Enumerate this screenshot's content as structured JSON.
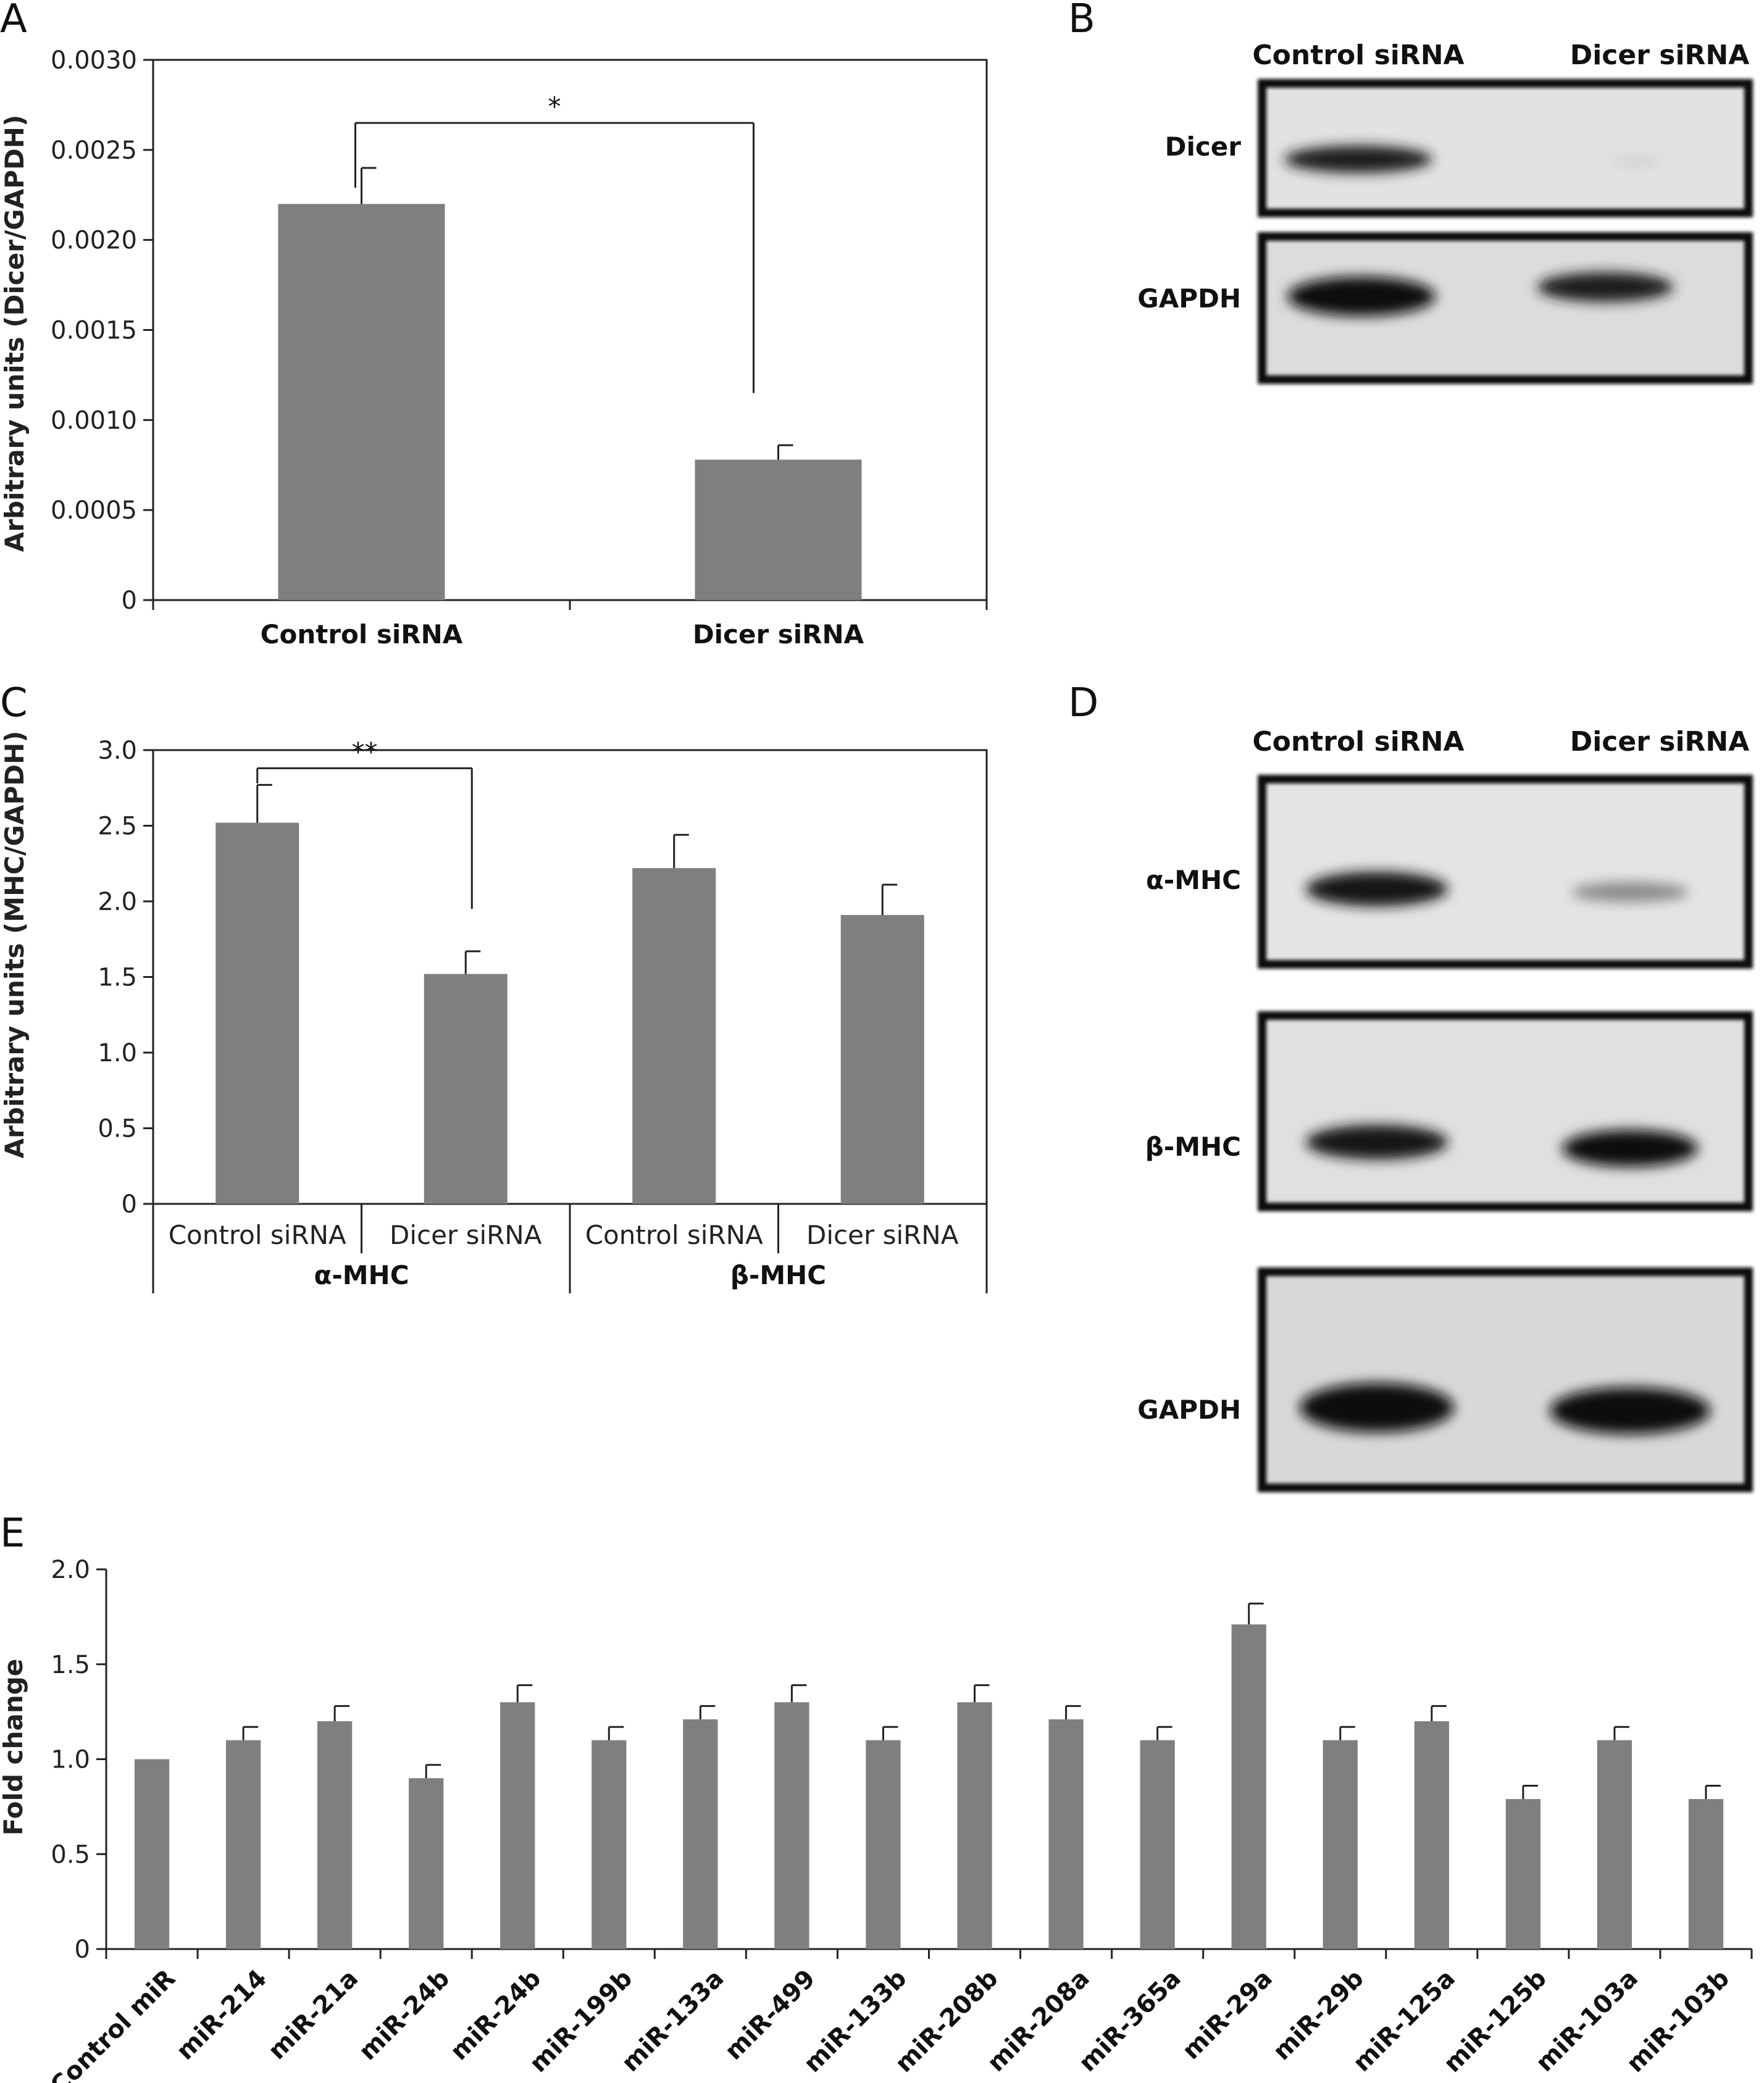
{
  "panels": {
    "A": "A",
    "B": "B",
    "C": "C",
    "D": "D",
    "E": "E"
  },
  "colors": {
    "bar": "#7f7f7f",
    "axis": "#222222"
  },
  "chart_data": [
    {
      "id": "A",
      "type": "bar",
      "ylabel": "Arbitrary units (Dicer/GAPDH)",
      "categories": [
        "Control siRNA",
        "Dicer siRNA"
      ],
      "values": [
        0.0022,
        0.00078
      ],
      "errors": [
        0.0002,
        8e-05
      ],
      "ylim": [
        0,
        0.003
      ],
      "yticks": [
        "0",
        "0.0005",
        "0.0010",
        "0.0015",
        "0.0020",
        "0.0025",
        "0.0030"
      ],
      "significance": "*",
      "grid": false
    },
    {
      "id": "C",
      "type": "bar",
      "ylabel": "Arbitrary units (MHC/GAPDH)",
      "categories": [
        "Control siRNA",
        "Dicer siRNA",
        "Control siRNA",
        "Dicer siRNA"
      ],
      "groups": [
        "α-MHC",
        "β-MHC"
      ],
      "values": [
        2.52,
        1.52,
        2.22,
        1.91
      ],
      "errors": [
        0.25,
        0.15,
        0.22,
        0.2
      ],
      "ylim": [
        0,
        3.0
      ],
      "yticks": [
        "0",
        "0.5",
        "1.0",
        "1.5",
        "2.0",
        "2.5",
        "3.0"
      ],
      "significance": "**",
      "grid": false
    },
    {
      "id": "E",
      "type": "bar",
      "ylabel": "Fold change",
      "categories": [
        "Control miR",
        "miR-214",
        "miR-21a",
        "miR-24b",
        "miR-24b",
        "miR-199b",
        "miR-133a",
        "miR-499",
        "miR-133b",
        "miR-208b",
        "miR-208a",
        "miR-365a",
        "miR-29a",
        "miR-29b",
        "miR-125a",
        "miR-125b",
        "miR-103a",
        "miR-103b"
      ],
      "values": [
        1.0,
        1.1,
        1.2,
        0.9,
        1.3,
        1.1,
        1.21,
        1.3,
        1.1,
        1.3,
        1.21,
        1.1,
        1.71,
        1.1,
        1.2,
        0.79,
        1.1,
        0.79
      ],
      "errors": [
        0,
        0.07,
        0.08,
        0.07,
        0.09,
        0.07,
        0.07,
        0.09,
        0.07,
        0.09,
        0.07,
        0.07,
        0.11,
        0.07,
        0.08,
        0.07,
        0.07,
        0.07
      ],
      "ylim": [
        0,
        2.0
      ],
      "yticks": [
        "0",
        "0.5",
        "1.0",
        "1.5",
        "2.0"
      ],
      "grid": false
    }
  ],
  "blots": {
    "B": {
      "lanes": [
        "Control siRNA",
        "Dicer siRNA"
      ],
      "rows": [
        "Dicer",
        "GAPDH"
      ]
    },
    "D": {
      "lanes": [
        "Control siRNA",
        "Dicer siRNA"
      ],
      "rows": [
        "α-MHC",
        "β-MHC",
        "GAPDH"
      ]
    }
  }
}
